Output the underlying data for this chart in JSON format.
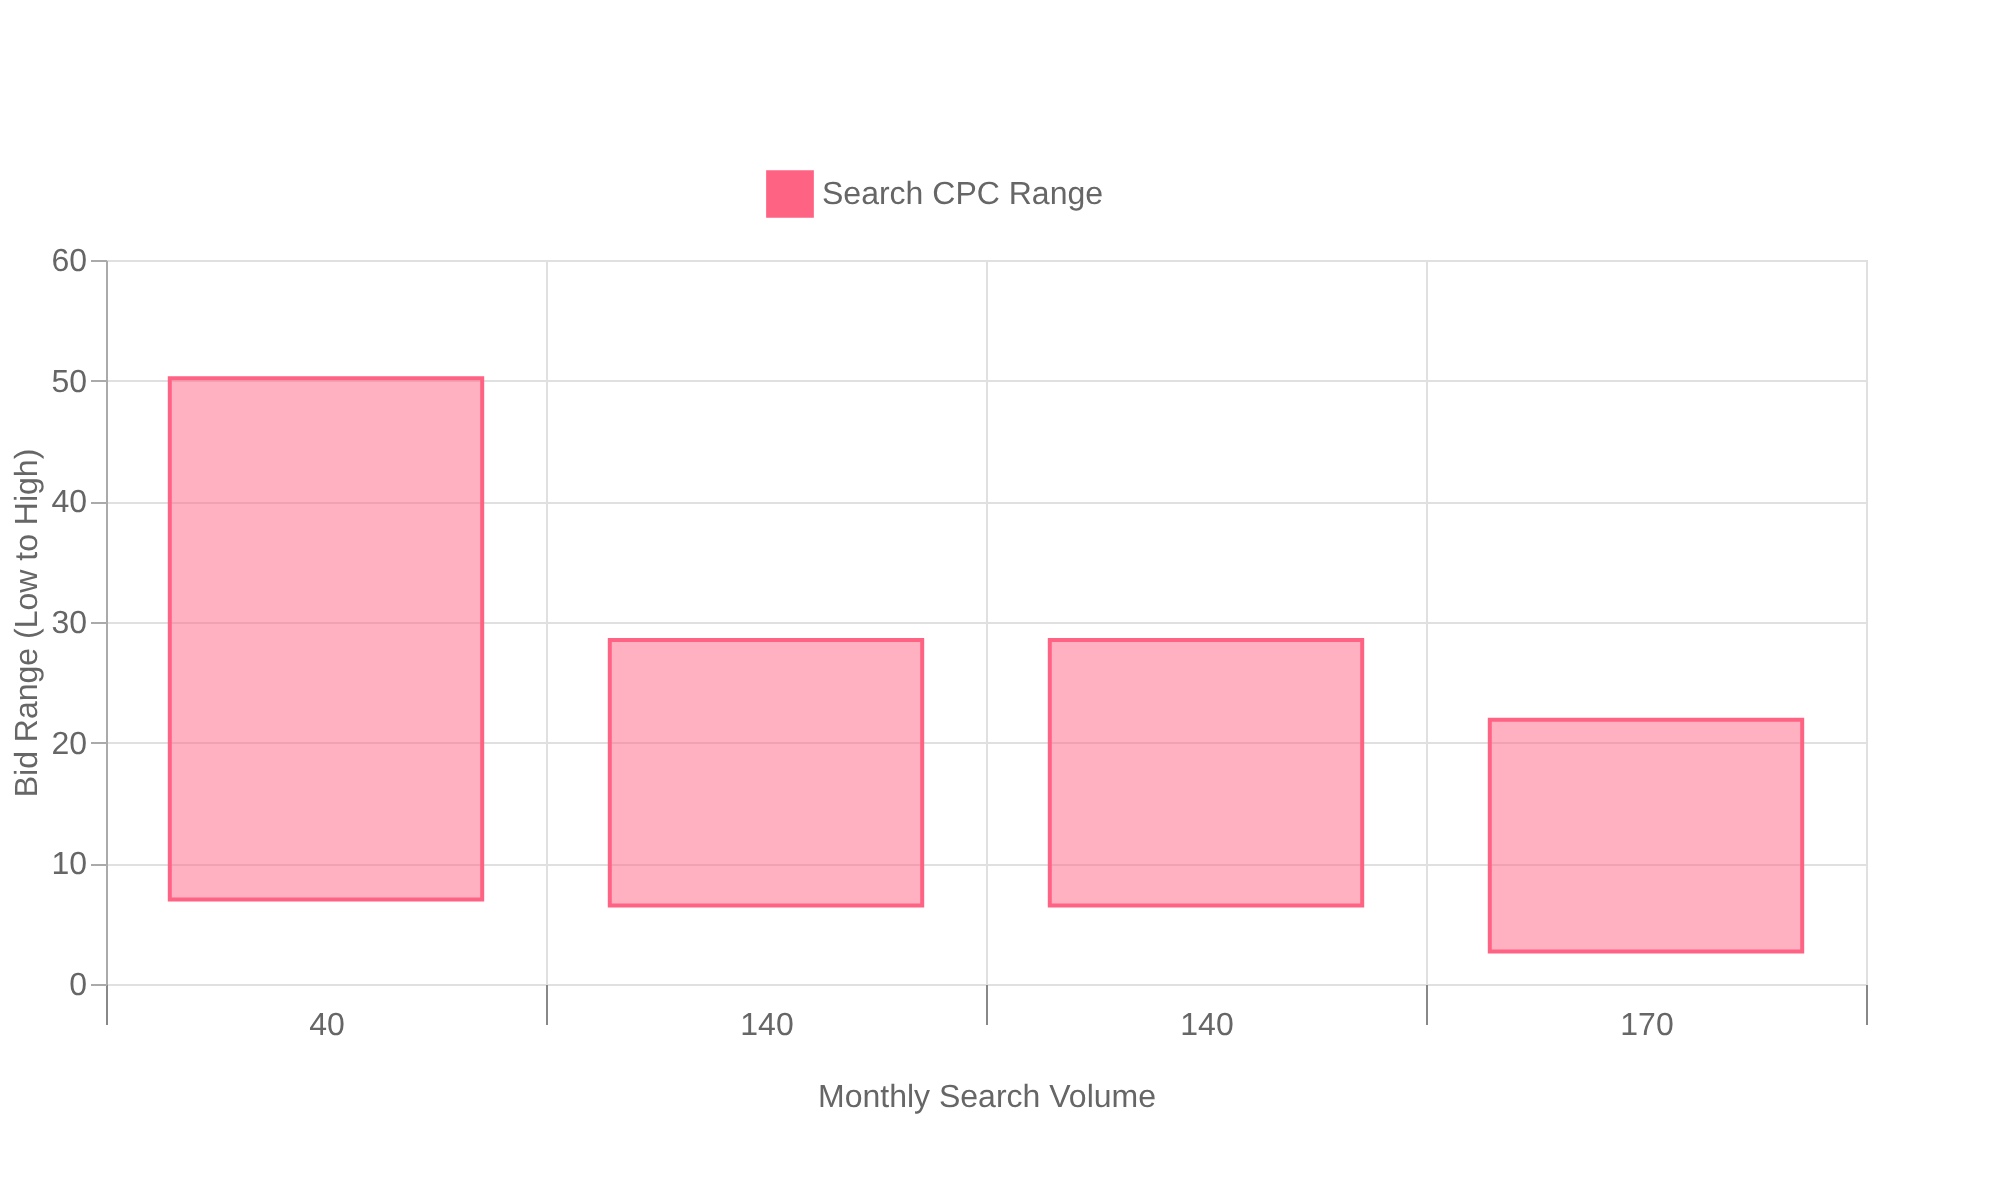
{
  "chart_data": {
    "type": "bar",
    "xlabel": "Monthly Search Volume",
    "ylabel": "Bid Range (Low to High)",
    "categories": [
      "40",
      "140",
      "140",
      "170"
    ],
    "series": [
      {
        "name": "Search CPC Range",
        "color": "#ff6384",
        "base": [
          7.0,
          6.5,
          6.5,
          2.7
        ],
        "values": [
          43.2,
          22.0,
          22.0,
          19.2
        ]
      }
    ],
    "ylim": [
      0,
      60
    ],
    "yticks": [
      0,
      10,
      20,
      30,
      40,
      50,
      60
    ],
    "grid": true,
    "legend": "top"
  }
}
